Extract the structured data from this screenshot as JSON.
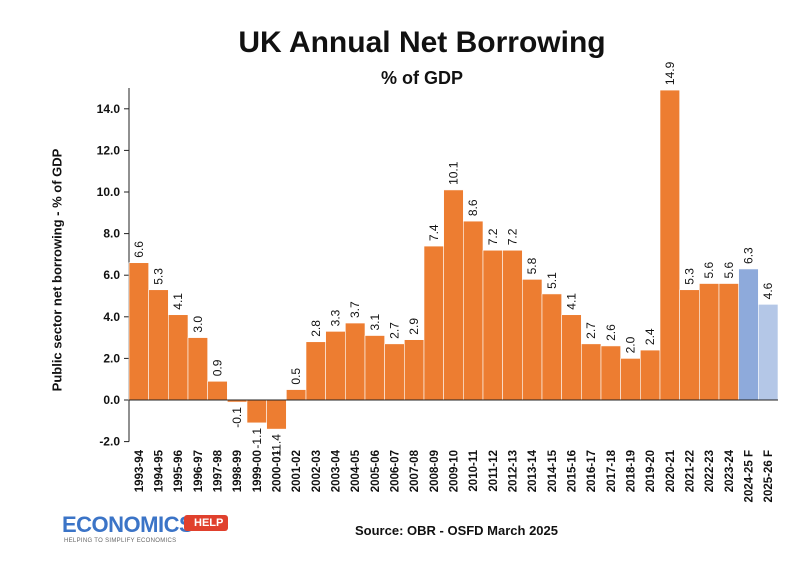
{
  "chart_data": {
    "type": "bar",
    "title": "UK Annual Net Borrowing",
    "subtitle": "% of GDP",
    "ylabel": "Public sector net borrowing - % of GDP",
    "xlabel": "",
    "ylim": [
      -2.0,
      15.0
    ],
    "yticks": [
      "14.0",
      "12.0",
      "10.0",
      "8.0",
      "6.0",
      "4.0",
      "2.0",
      "0.0",
      "-2.0"
    ],
    "ytick_values": [
      14,
      12,
      10,
      8,
      6,
      4,
      2,
      0,
      -2
    ],
    "grid": false,
    "categories": [
      "1993-94",
      "1994-95",
      "1995-96",
      "1996-97",
      "1997-98",
      "1998-99",
      "1999-00",
      "2000-01",
      "2001-02",
      "2002-03",
      "2003-04",
      "2004-05",
      "2005-06",
      "2006-07",
      "2007-08",
      "2008-09",
      "2009-10",
      "2010-11",
      "2011-12",
      "2012-13",
      "2013-14",
      "2014-15",
      "2015-16",
      "2016-17",
      "2017-18",
      "2018-19",
      "2019-20",
      "2020-21",
      "2021-22",
      "2022-23",
      "2023-24",
      "2024-25 F",
      "2025-26 F"
    ],
    "values": [
      6.6,
      5.3,
      4.1,
      3.0,
      0.9,
      -0.1,
      -1.1,
      -1.4,
      0.5,
      2.8,
      3.3,
      3.7,
      3.1,
      2.7,
      2.9,
      7.4,
      10.1,
      8.6,
      7.2,
      7.2,
      5.8,
      5.1,
      4.1,
      2.7,
      2.6,
      2.0,
      2.4,
      14.9,
      5.3,
      5.6,
      5.6,
      6.3,
      4.6
    ],
    "data_labels": [
      "6.6",
      "5.3",
      "4.1",
      "3.0",
      "0.9",
      "-0.1",
      "-1.1",
      "-1.4",
      "0.5",
      "2.8",
      "3.3",
      "3.7",
      "3.1",
      "2.7",
      "2.9",
      "7.4",
      "10.1",
      "8.6",
      "7.2",
      "7.2",
      "5.8",
      "5.1",
      "4.1",
      "2.7",
      "2.6",
      "2.0",
      "2.4",
      "14.9",
      "5.3",
      "5.6",
      "5.6",
      "6.3",
      "4.6"
    ],
    "colors": {
      "actual": "#ed7d31",
      "forecast_2024_25": "#8eaadb",
      "forecast_2025_26": "#b4c7e7"
    }
  },
  "source": "Source: OBR - OSFD   March 2025",
  "logo": {
    "word": "ECONOMICS",
    "badge": "HELP",
    "tagline": "HELPING TO SIMPLIFY ECONOMICS"
  }
}
